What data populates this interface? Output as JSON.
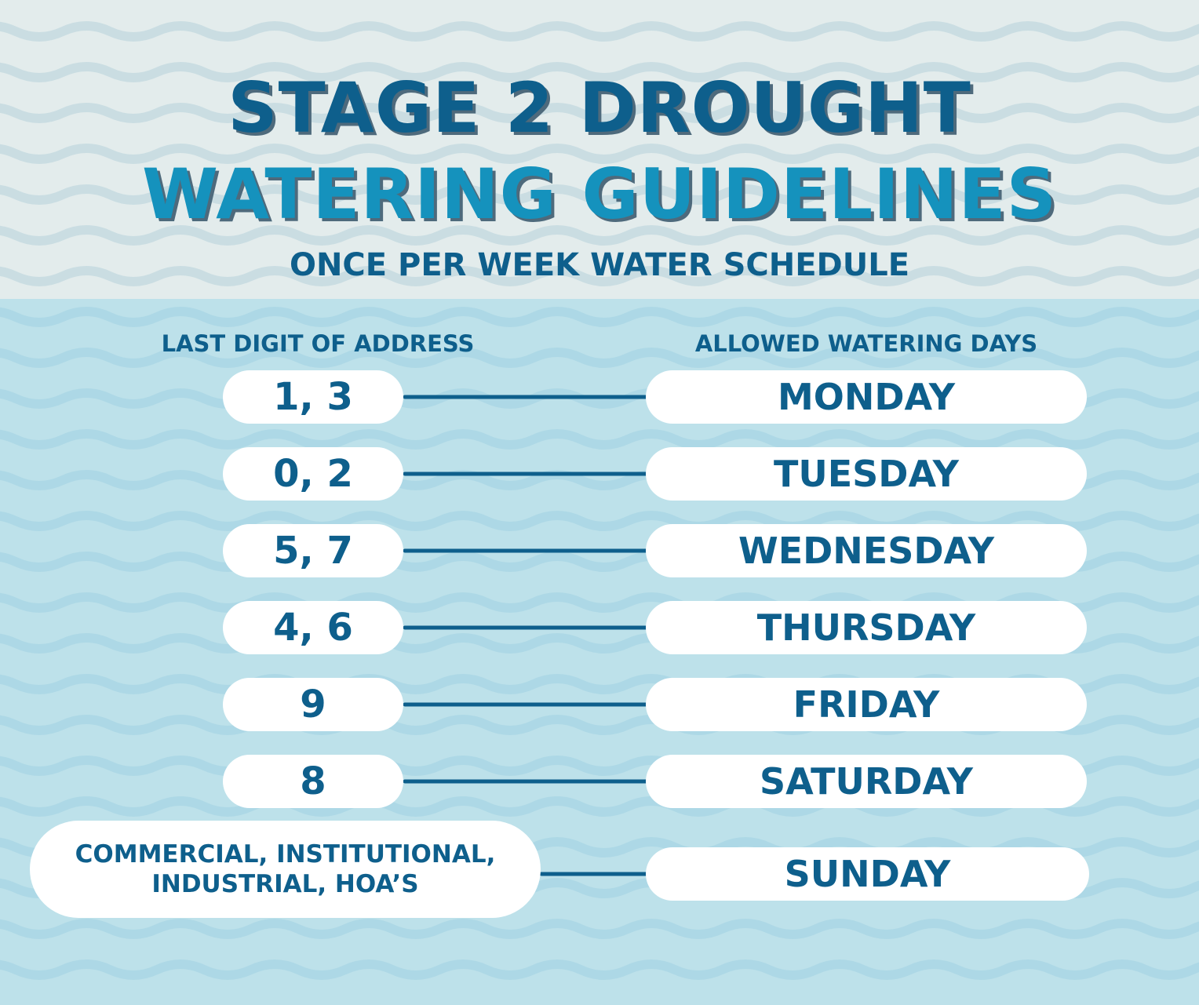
{
  "title": {
    "line1": "STAGE 2 DROUGHT",
    "line2": "WATERING GUIDELINES"
  },
  "subtitle": "ONCE PER WEEK WATER SCHEDULE",
  "headers": {
    "left": "LAST DIGIT OF ADDRESS",
    "right": "ALLOWED WATERING DAYS"
  },
  "rows": [
    {
      "digits": "1, 3",
      "day": "MONDAY"
    },
    {
      "digits": "0, 2",
      "day": "TUESDAY"
    },
    {
      "digits": "5, 7",
      "day": "WEDNESDAY"
    },
    {
      "digits": "4, 6",
      "day": "THURSDAY"
    },
    {
      "digits": "9",
      "day": "FRIDAY"
    },
    {
      "digits": "8",
      "day": "SATURDAY"
    }
  ],
  "special_row": {
    "label_line1": "COMMERCIAL, INSTITUTIONAL,",
    "label_line2": "INDUSTRIAL, HOA’S",
    "day": "SUNDAY"
  },
  "colors": {
    "dark_blue": "#0e5f8c",
    "bright_blue": "#1592bd",
    "top_band": "#e3ecec",
    "water_band": "#bde1ea",
    "pill": "#ffffff"
  }
}
